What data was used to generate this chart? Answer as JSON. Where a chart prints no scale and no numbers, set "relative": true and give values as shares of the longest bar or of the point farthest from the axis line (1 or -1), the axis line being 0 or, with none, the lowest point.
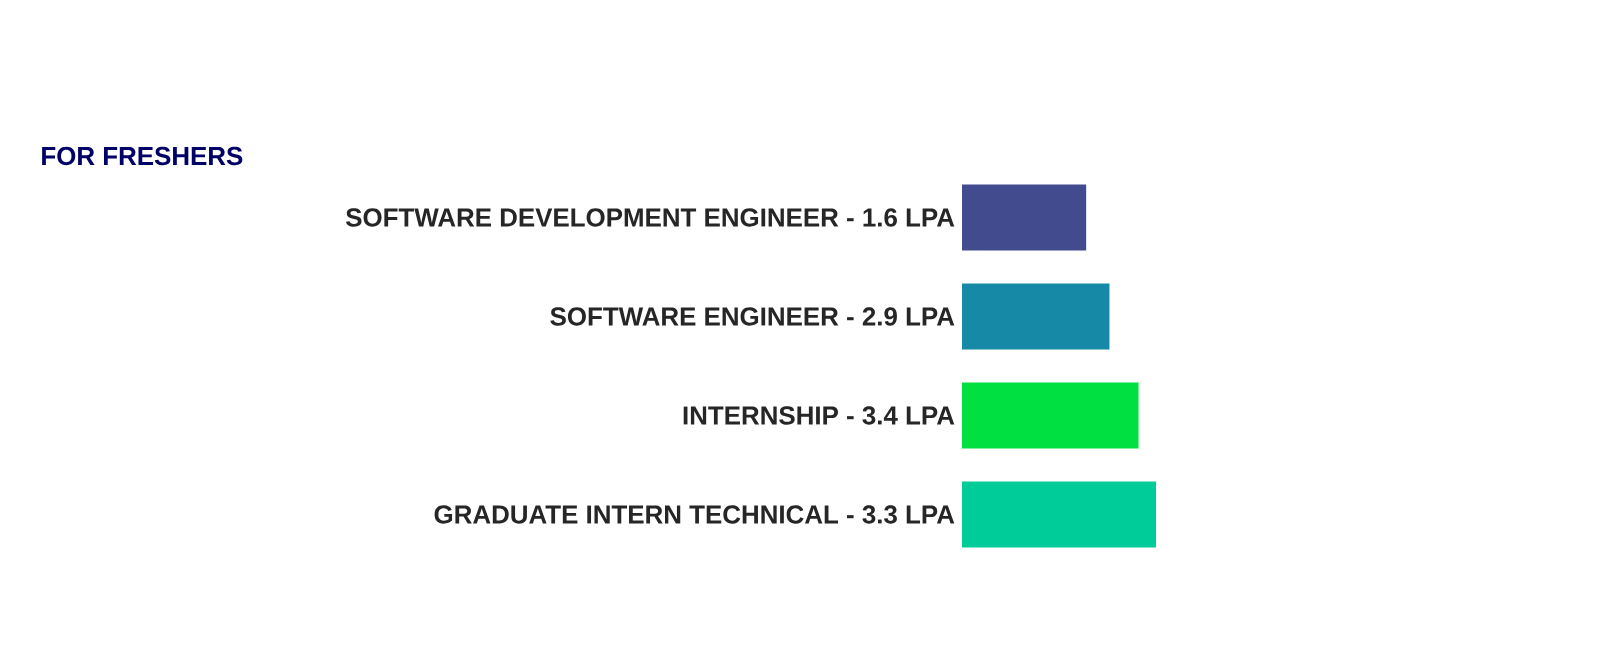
{
  "chart_data": {
    "type": "bar",
    "orientation": "horizontal",
    "relative": true,
    "title": "FOR FRESHERS",
    "categories": [
      "SOFTWARE DEVELOPMENT ENGINEER - 1.6 LPA",
      "SOFTWARE ENGINEER - 2.9 LPA",
      "INTERNSHIP - 3.4 LPA",
      "GRADUATE INTERN TECHNICAL - 3.3 LPA"
    ],
    "values": [
      0.64,
      0.76,
      0.91,
      1
    ],
    "colors": [
      "#434b8f",
      "#1589a5",
      "#00e040",
      "#00cc99"
    ]
  }
}
